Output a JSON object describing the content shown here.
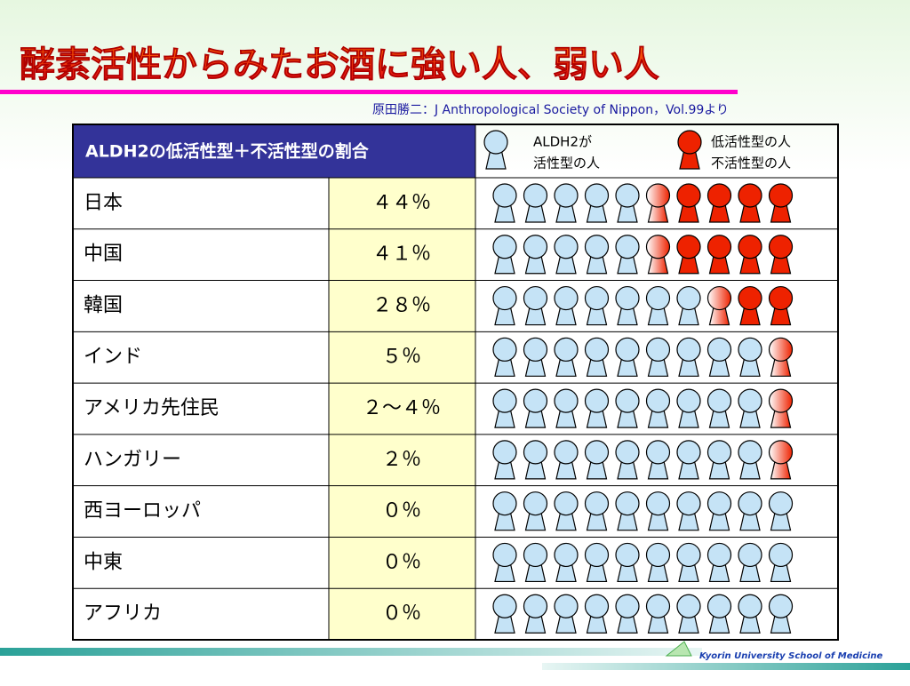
{
  "title": "酵素活性からみたお酒に強い人、弱い人",
  "citation": "原田勝二：J Anthropological Society of Nippon，Vol.99より",
  "table": {
    "header": "ALDH2の低活性型＋不活性型の割合",
    "legend": {
      "active": [
        "ALDH2が",
        "活性型の人"
      ],
      "inactive": [
        "低活性型の人",
        "不活性型の人"
      ]
    },
    "rows": [
      [
        "日本",
        "４４％"
      ],
      [
        "中国",
        "４１％"
      ],
      [
        "韓国",
        "２８％"
      ],
      [
        "インド",
        "５％"
      ],
      [
        "アメリカ先住民",
        "２～４％"
      ],
      [
        "ハンガリー",
        "２％"
      ],
      [
        "西ヨーロッパ",
        "０％"
      ],
      [
        "中東",
        "０％"
      ],
      [
        "アフリカ",
        "０％"
      ]
    ]
  },
  "footer": "Kyorin University School of Medicine"
}
